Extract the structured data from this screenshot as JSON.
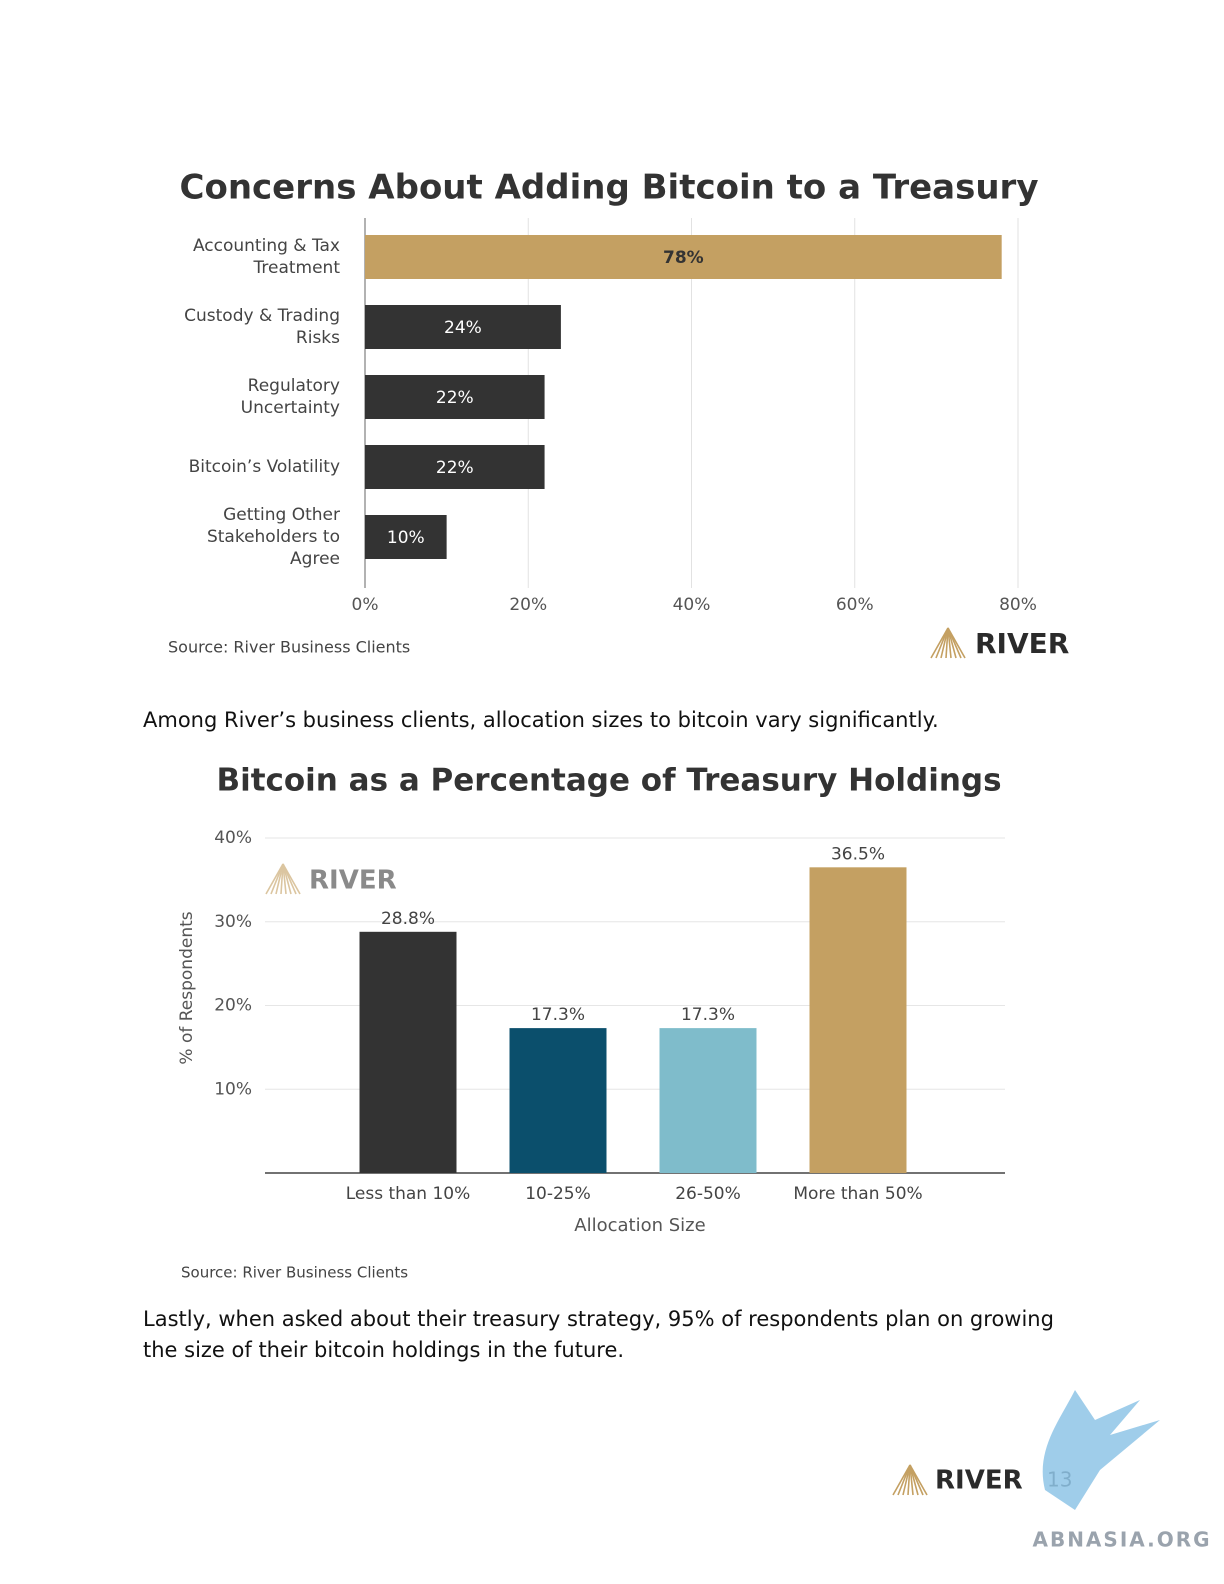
{
  "chart_data": [
    {
      "type": "hbar",
      "title": "Concerns About Adding Bitcoin to a Treasury",
      "categories": [
        "Accounting & Tax Treatment",
        "Custody & Trading Risks",
        "Regulatory Uncertainty",
        "Bitcoin’s Volatility",
        "Getting Other Stakeholders to Agree"
      ],
      "values": [
        78,
        24,
        22,
        22,
        10
      ],
      "value_labels": [
        "78%",
        "24%",
        "22%",
        "22%",
        "10%"
      ],
      "colors": [
        "#c4a062",
        "#333333",
        "#333333",
        "#333333",
        "#333333"
      ],
      "label_colors": [
        "#333333",
        "#ffffff",
        "#ffffff",
        "#ffffff",
        "#ffffff"
      ],
      "xlim": [
        0,
        80
      ],
      "xticks": [
        {
          "value": 0,
          "label": "0%"
        },
        {
          "value": 20,
          "label": "20%"
        },
        {
          "value": 40,
          "label": "40%"
        },
        {
          "value": 60,
          "label": "60%"
        },
        {
          "value": 80,
          "label": "80%"
        }
      ],
      "grid": true,
      "source": "Source: River Business Clients"
    },
    {
      "type": "bar",
      "title": "Bitcoin as a Percentage of Treasury Holdings",
      "categories": [
        "Less than 10%",
        "10-25%",
        "26-50%",
        "More than 50%"
      ],
      "values": [
        28.8,
        17.3,
        17.3,
        36.5
      ],
      "value_labels": [
        "28.8%",
        "17.3%",
        "17.3%",
        "36.5%"
      ],
      "colors": [
        "#333333",
        "#0b4f6c",
        "#7fbccb",
        "#c4a062"
      ],
      "ylim": [
        0,
        40
      ],
      "yticks": [
        {
          "value": 10,
          "label": "10%"
        },
        {
          "value": 20,
          "label": "20%"
        },
        {
          "value": 30,
          "label": "30%"
        },
        {
          "value": 40,
          "label": "40%"
        }
      ],
      "ylabel": "% of Respondents",
      "xlabel": "Allocation Size",
      "grid": true,
      "source": "Source: River Business Clients"
    }
  ],
  "logo": "RIVER",
  "paragraphs": [
    "Among River’s business clients, allocation sizes to bitcoin vary significantly.",
    "Lastly, when asked about their treasury strategy, 95% of respondents plan on growing the size of their bitcoin holdings in the future."
  ],
  "page_number": "13",
  "watermark": "ABNASIA.ORG"
}
